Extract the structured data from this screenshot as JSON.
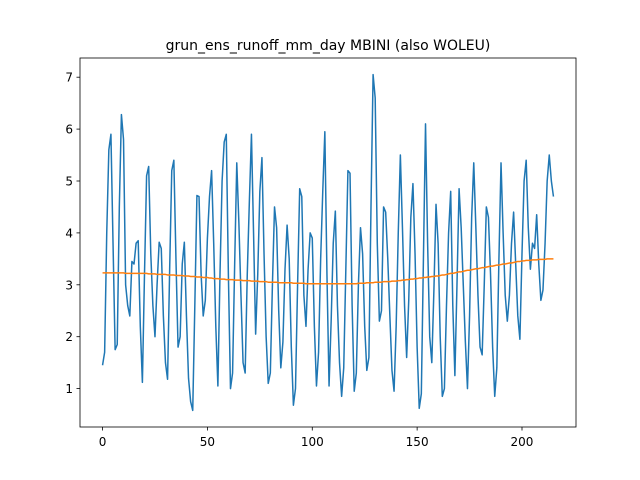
{
  "chart_data": {
    "type": "line",
    "title": "grun_ens_runoff_mm_day MBINI (also WOLEU)",
    "x": [
      0,
      1,
      2,
      3,
      4,
      5,
      6,
      7,
      8,
      9,
      10,
      11,
      12,
      13,
      14,
      15,
      16,
      17,
      18,
      19,
      20,
      21,
      22,
      23,
      24,
      25,
      26,
      27,
      28,
      29,
      30,
      31,
      32,
      33,
      34,
      35,
      36,
      37,
      38,
      39,
      40,
      41,
      42,
      43,
      44,
      45,
      46,
      47,
      48,
      49,
      50,
      51,
      52,
      53,
      54,
      55,
      56,
      57,
      58,
      59,
      60,
      61,
      62,
      63,
      64,
      65,
      66,
      67,
      68,
      69,
      70,
      71,
      72,
      73,
      74,
      75,
      76,
      77,
      78,
      79,
      80,
      81,
      82,
      83,
      84,
      85,
      86,
      87,
      88,
      89,
      90,
      91,
      92,
      93,
      94,
      95,
      96,
      97,
      98,
      99,
      100,
      101,
      102,
      103,
      104,
      105,
      106,
      107,
      108,
      109,
      110,
      111,
      112,
      113,
      114,
      115,
      116,
      117,
      118,
      119,
      120,
      121,
      122,
      123,
      124,
      125,
      126,
      127,
      128,
      129,
      130,
      131,
      132,
      133,
      134,
      135,
      136,
      137,
      138,
      139,
      140,
      141,
      142,
      143,
      144,
      145,
      146,
      147,
      148,
      149,
      150,
      151,
      152,
      153,
      154,
      155,
      156,
      157,
      158,
      159,
      160,
      161,
      162,
      163,
      164,
      165,
      166,
      167,
      168,
      169,
      170,
      171,
      172,
      173,
      174,
      175,
      176,
      177,
      178,
      179,
      180,
      181,
      182,
      183,
      184,
      185,
      186,
      187,
      188,
      189,
      190,
      191,
      192,
      193,
      194,
      195,
      196,
      197,
      198,
      199,
      200,
      201,
      202,
      203,
      204,
      205,
      206,
      207,
      208,
      209,
      210,
      211,
      212,
      213,
      214,
      215
    ],
    "series": [
      {
        "color": "#1f77b4",
        "values": [
          1.45,
          1.7,
          4.0,
          5.6,
          5.9,
          3.8,
          1.75,
          1.85,
          4.5,
          6.28,
          5.8,
          3.0,
          2.6,
          2.4,
          3.45,
          3.4,
          3.8,
          3.85,
          2.2,
          1.12,
          3.2,
          5.1,
          5.28,
          3.6,
          2.6,
          2.0,
          3.0,
          3.82,
          3.7,
          2.4,
          1.5,
          1.18,
          3.3,
          5.2,
          5.4,
          3.5,
          1.8,
          2.0,
          3.4,
          3.82,
          2.4,
          1.2,
          0.75,
          0.58,
          2.6,
          4.72,
          4.7,
          3.2,
          2.4,
          2.7,
          3.9,
          4.7,
          5.2,
          3.8,
          2.2,
          1.05,
          3.2,
          5.0,
          5.75,
          5.9,
          3.2,
          1.0,
          1.3,
          3.4,
          5.35,
          4.2,
          2.8,
          1.5,
          1.3,
          3.2,
          4.6,
          5.9,
          4.0,
          2.05,
          3.2,
          4.8,
          5.45,
          3.6,
          2.0,
          1.1,
          1.3,
          3.0,
          4.5,
          4.1,
          2.5,
          1.4,
          1.9,
          3.3,
          4.15,
          3.5,
          1.8,
          0.68,
          1.0,
          3.0,
          4.85,
          4.7,
          2.8,
          2.2,
          3.3,
          4.0,
          3.9,
          2.2,
          1.05,
          1.7,
          3.5,
          4.8,
          5.95,
          3.2,
          1.05,
          2.3,
          3.8,
          4.42,
          2.6,
          1.5,
          0.85,
          1.4,
          3.3,
          5.2,
          5.15,
          2.6,
          0.95,
          1.3,
          3.0,
          4.1,
          3.6,
          2.2,
          1.35,
          1.6,
          4.5,
          7.05,
          6.6,
          3.8,
          2.3,
          2.5,
          4.5,
          4.4,
          3.5,
          2.4,
          1.35,
          0.95,
          2.2,
          4.0,
          5.5,
          4.1,
          2.6,
          1.6,
          2.7,
          4.3,
          4.95,
          3.6,
          1.8,
          0.62,
          0.9,
          3.5,
          6.1,
          3.8,
          2.0,
          1.5,
          2.9,
          4.55,
          3.8,
          2.0,
          0.85,
          1.0,
          2.6,
          4.0,
          4.8,
          2.6,
          1.25,
          3.0,
          4.85,
          4.1,
          3.0,
          1.9,
          1.0,
          2.4,
          4.3,
          5.35,
          4.1,
          2.8,
          1.8,
          1.65,
          3.0,
          4.5,
          4.3,
          3.2,
          1.8,
          0.85,
          1.4,
          3.5,
          5.35,
          4.0,
          2.8,
          2.3,
          2.8,
          3.8,
          4.4,
          3.4,
          2.4,
          1.95,
          3.6,
          5.0,
          5.4,
          4.1,
          3.3,
          3.8,
          3.7,
          4.35,
          3.4,
          2.7,
          2.9,
          3.8,
          5.0,
          5.5,
          5.0,
          4.7
        ]
      },
      {
        "color": "#ff7f0e",
        "values": [
          3.23,
          3.23,
          3.23,
          3.23,
          3.23,
          3.23,
          3.23,
          3.23,
          3.23,
          3.23,
          3.23,
          3.22,
          3.22,
          3.22,
          3.22,
          3.22,
          3.22,
          3.22,
          3.22,
          3.22,
          3.22,
          3.22,
          3.21,
          3.21,
          3.21,
          3.21,
          3.2,
          3.2,
          3.2,
          3.2,
          3.2,
          3.19,
          3.19,
          3.19,
          3.19,
          3.18,
          3.18,
          3.18,
          3.18,
          3.17,
          3.17,
          3.17,
          3.16,
          3.16,
          3.16,
          3.15,
          3.15,
          3.15,
          3.14,
          3.14,
          3.14,
          3.13,
          3.13,
          3.12,
          3.12,
          3.12,
          3.11,
          3.11,
          3.11,
          3.1,
          3.1,
          3.1,
          3.1,
          3.09,
          3.09,
          3.09,
          3.09,
          3.08,
          3.08,
          3.08,
          3.08,
          3.07,
          3.07,
          3.07,
          3.07,
          3.06,
          3.06,
          3.06,
          3.06,
          3.05,
          3.05,
          3.05,
          3.05,
          3.05,
          3.04,
          3.04,
          3.04,
          3.04,
          3.04,
          3.04,
          3.04,
          3.03,
          3.03,
          3.03,
          3.03,
          3.03,
          3.03,
          3.02,
          3.02,
          3.02,
          3.02,
          3.02,
          3.02,
          3.02,
          3.02,
          3.02,
          3.02,
          3.02,
          3.02,
          3.02,
          3.02,
          3.02,
          3.02,
          3.02,
          3.02,
          3.02,
          3.02,
          3.02,
          3.02,
          3.02,
          3.02,
          3.02,
          3.03,
          3.03,
          3.03,
          3.03,
          3.04,
          3.04,
          3.04,
          3.04,
          3.05,
          3.05,
          3.05,
          3.05,
          3.06,
          3.06,
          3.06,
          3.06,
          3.07,
          3.07,
          3.07,
          3.08,
          3.08,
          3.09,
          3.09,
          3.1,
          3.1,
          3.11,
          3.11,
          3.12,
          3.12,
          3.13,
          3.13,
          3.14,
          3.14,
          3.15,
          3.15,
          3.16,
          3.16,
          3.17,
          3.17,
          3.18,
          3.19,
          3.19,
          3.2,
          3.21,
          3.22,
          3.22,
          3.23,
          3.24,
          3.25,
          3.25,
          3.26,
          3.27,
          3.28,
          3.28,
          3.29,
          3.3,
          3.31,
          3.31,
          3.32,
          3.33,
          3.33,
          3.34,
          3.35,
          3.36,
          3.36,
          3.37,
          3.38,
          3.38,
          3.39,
          3.4,
          3.4,
          3.41,
          3.42,
          3.42,
          3.43,
          3.44,
          3.45,
          3.45,
          3.46,
          3.46,
          3.47,
          3.47,
          3.47,
          3.48,
          3.48,
          3.48,
          3.49,
          3.49,
          3.49,
          3.49,
          3.5,
          3.5,
          3.5,
          3.5
        ]
      }
    ],
    "xlim": [
      -10.75,
      225.75
    ],
    "xticks": [
      0,
      50,
      100,
      150,
      200
    ],
    "ylim": [
      0.26,
      7.37
    ],
    "yticks": [
      1,
      2,
      3,
      4,
      5,
      6,
      7
    ],
    "grid": false
  }
}
